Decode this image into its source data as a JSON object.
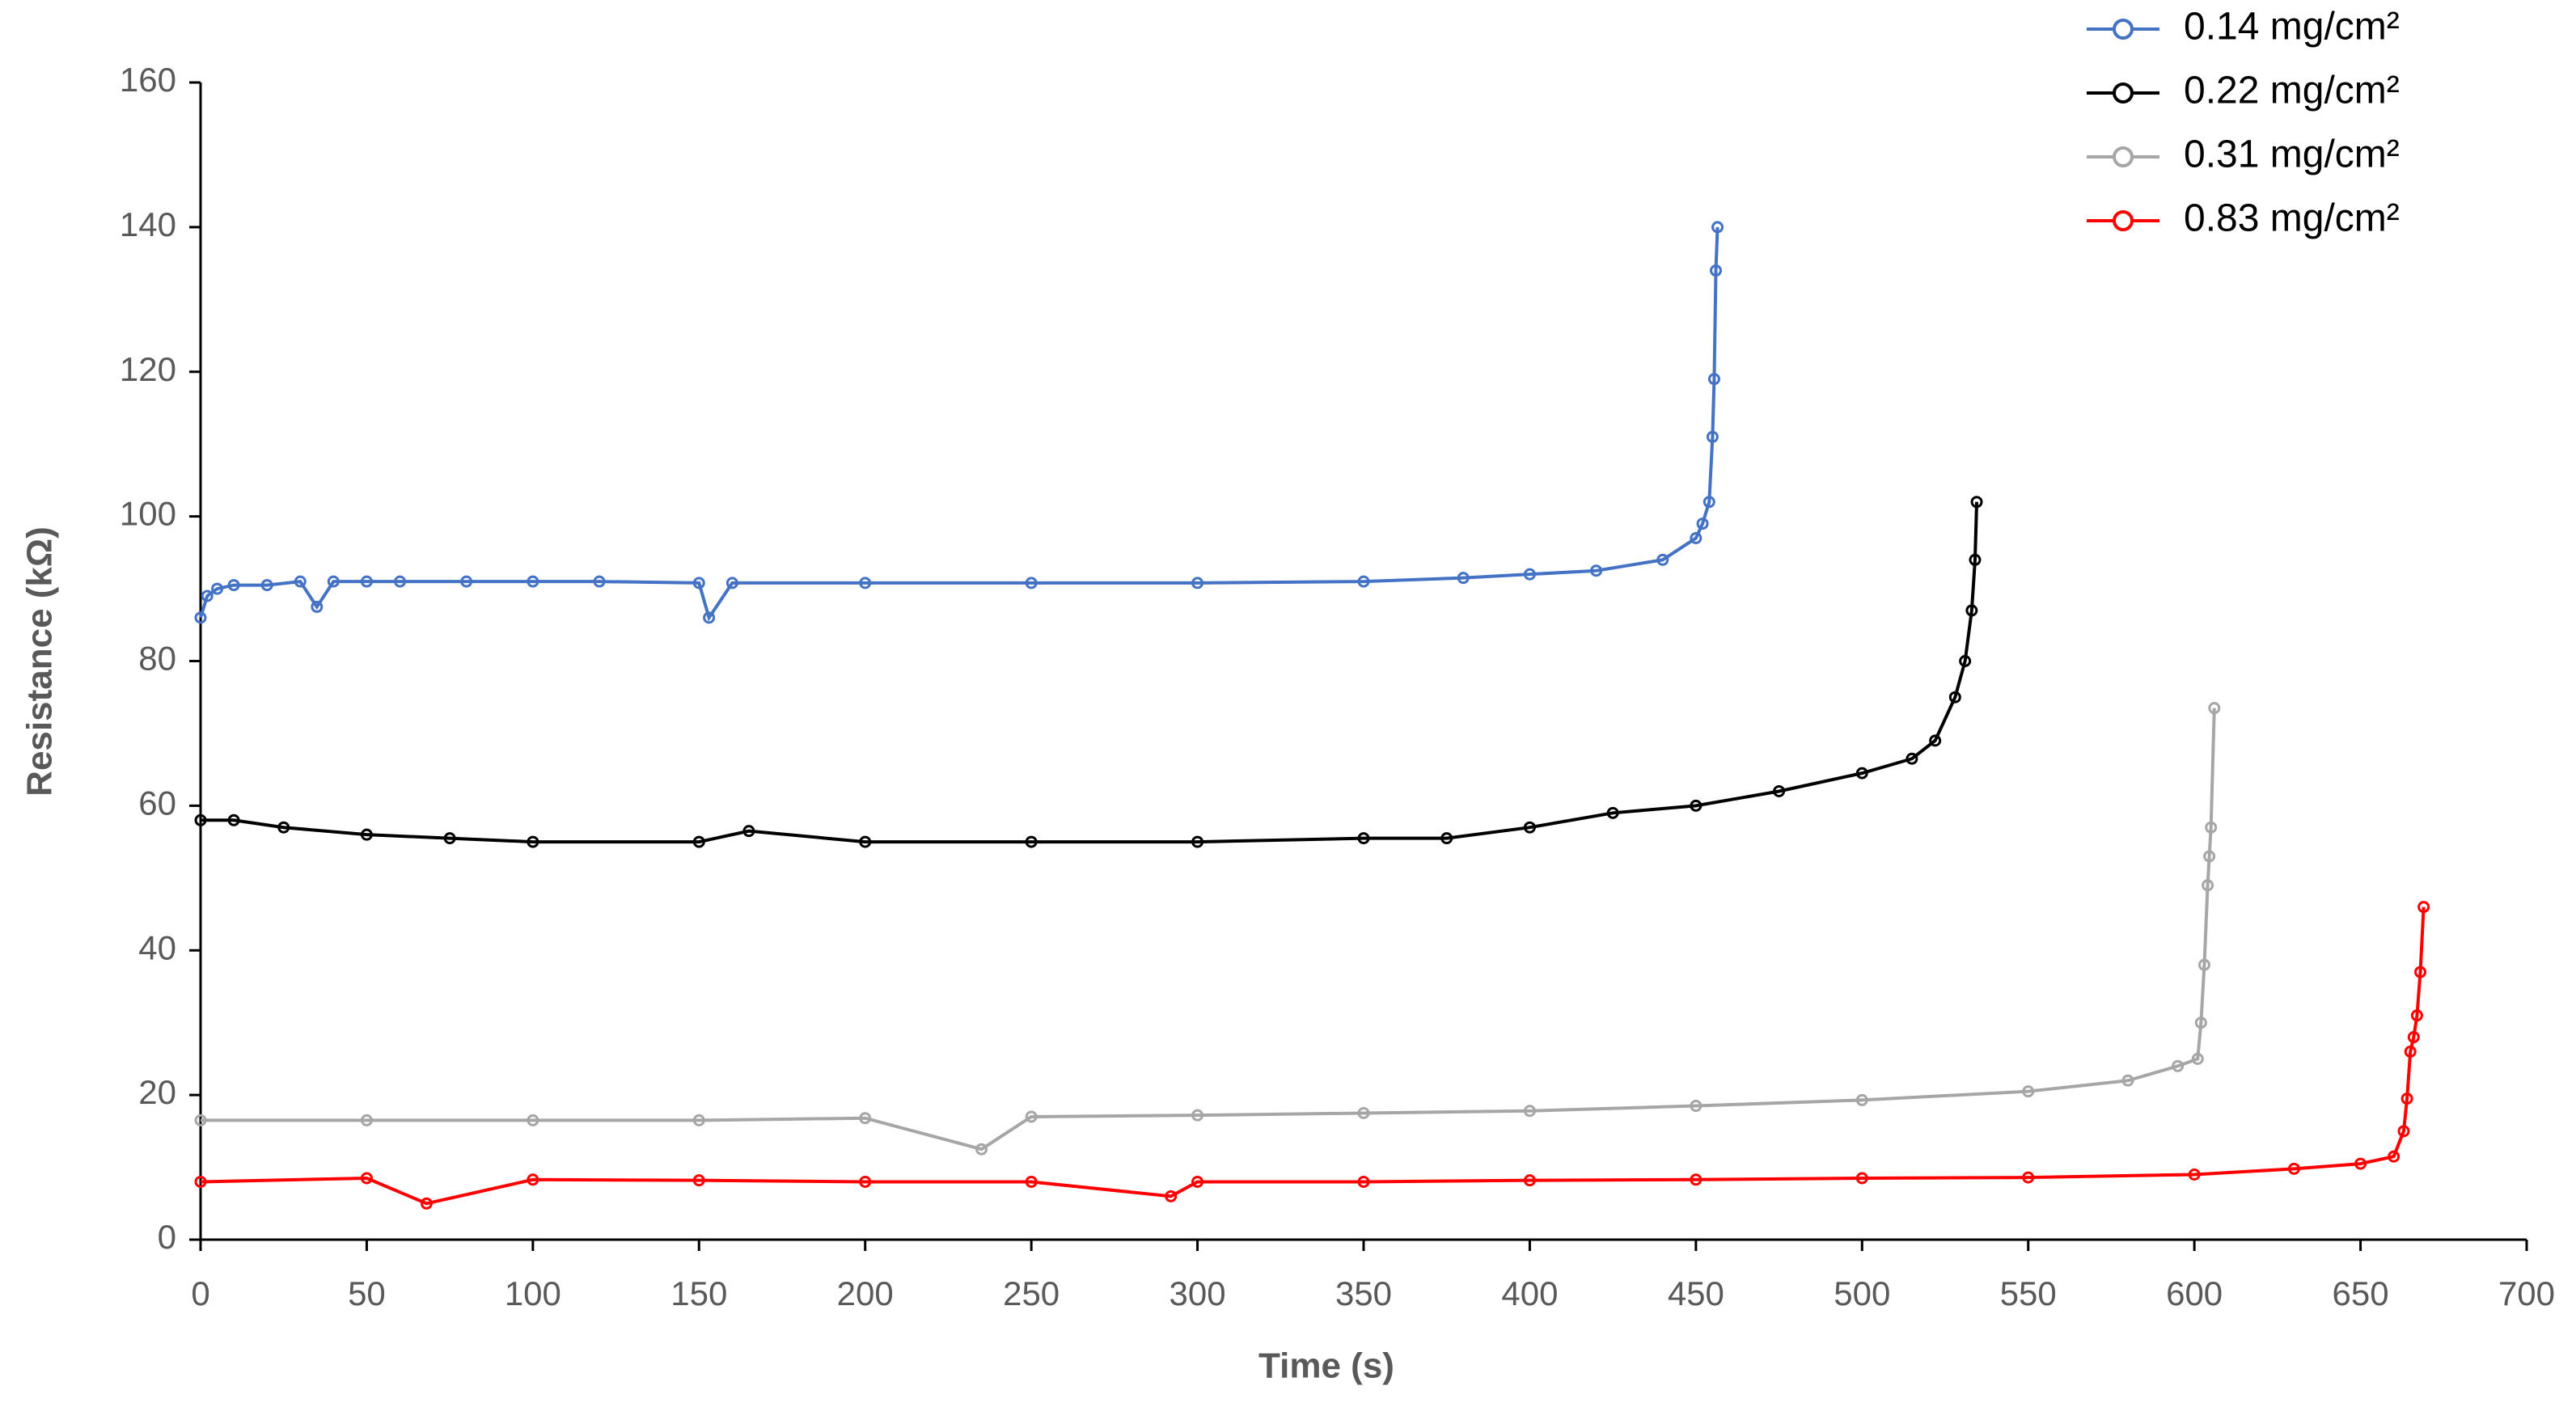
{
  "chart_data": {
    "type": "line",
    "x_label": "Time (s)",
    "y_label": "Resistance (kΩ)",
    "xlim": [
      0,
      700
    ],
    "xticks": [
      0,
      50,
      100,
      150,
      200,
      250,
      300,
      350,
      400,
      450,
      500,
      550,
      600,
      650,
      700
    ],
    "ylim": [
      0,
      160
    ],
    "yticks": [
      0,
      20,
      40,
      60,
      80,
      100,
      120,
      140,
      160
    ],
    "legend": "top-right",
    "series": [
      {
        "name": "0.14 mg/cm²",
        "color": "#4472c4",
        "x": [
          0,
          2,
          5,
          10,
          20,
          30,
          35,
          40,
          50,
          60,
          80,
          100,
          120,
          150,
          153,
          160,
          200,
          250,
          300,
          350,
          380,
          400,
          420,
          440,
          450,
          452,
          454,
          455,
          455.5,
          456,
          456.5
        ],
        "values": [
          86,
          89,
          90,
          90.5,
          90.5,
          91,
          87.5,
          91,
          91,
          91,
          91,
          91,
          91,
          90.8,
          86,
          90.8,
          90.8,
          90.8,
          90.8,
          91,
          91.5,
          92,
          92.5,
          94,
          97,
          99,
          102,
          111,
          119,
          134,
          140
        ]
      },
      {
        "name": "0.22 mg/cm²",
        "color": "#000000",
        "x": [
          0,
          10,
          25,
          50,
          75,
          100,
          150,
          165,
          200,
          250,
          300,
          350,
          375,
          400,
          425,
          450,
          475,
          500,
          515,
          522,
          528,
          531,
          533,
          534,
          534.5
        ],
        "values": [
          58,
          58,
          57,
          56,
          55.5,
          55,
          55,
          56.5,
          55,
          55,
          55,
          55.5,
          55.5,
          57,
          59,
          60,
          62,
          64.5,
          66.5,
          69,
          75,
          80,
          87,
          94,
          102
        ]
      },
      {
        "name": "0.31 mg/cm²",
        "color": "#a6a6a6",
        "x": [
          0,
          50,
          100,
          150,
          200,
          235,
          250,
          300,
          350,
          400,
          450,
          500,
          550,
          580,
          595,
          601,
          602,
          603,
          604,
          604.5,
          605,
          606
        ],
        "values": [
          16.5,
          16.5,
          16.5,
          16.5,
          16.8,
          12.5,
          17,
          17.2,
          17.5,
          17.8,
          18.5,
          19.3,
          20.5,
          22,
          24,
          25,
          30,
          38,
          49,
          53,
          57,
          73.5
        ]
      },
      {
        "name": "0.83 mg/cm²",
        "color": "#ff0000",
        "x": [
          0,
          50,
          68,
          100,
          150,
          200,
          250,
          292,
          300,
          350,
          400,
          450,
          500,
          550,
          600,
          630,
          650,
          660,
          663,
          664,
          665,
          666,
          667,
          668,
          669
        ],
        "values": [
          8,
          8.5,
          5,
          8.3,
          8.2,
          8,
          8,
          6,
          8,
          8,
          8.2,
          8.3,
          8.5,
          8.6,
          9,
          9.8,
          10.5,
          11.5,
          15,
          19.5,
          26,
          28,
          31,
          37,
          46
        ]
      }
    ]
  }
}
